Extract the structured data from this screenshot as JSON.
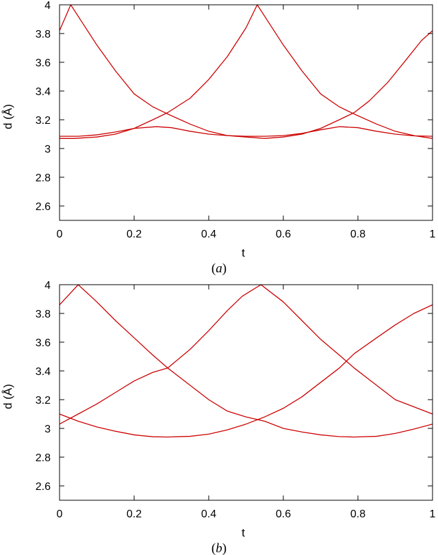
{
  "panels": [
    {
      "caption_letter": "a"
    },
    {
      "caption_letter": "b"
    }
  ],
  "chart_data": [
    {
      "type": "line",
      "xlabel": "t",
      "ylabel": "d (Å)",
      "xlim": [
        0,
        1
      ],
      "ylim": [
        2.5,
        4.0
      ],
      "xticks": [
        0,
        0.2,
        0.4,
        0.6,
        0.8,
        1
      ],
      "xtick_labels": [
        "0",
        "0.2",
        "0.4",
        "0.6",
        "0.8",
        "1"
      ],
      "yticks": [
        2.6,
        2.8,
        3.0,
        3.2,
        3.4,
        3.6,
        3.8,
        4.0
      ],
      "ytick_labels": [
        "2.6",
        "2.8",
        "3",
        "3.2",
        "3.4",
        "3.6",
        "3.8",
        "4"
      ],
      "grid": false,
      "line_color": "#cc0000",
      "series": [
        {
          "x": [
            0,
            0.03,
            0.06,
            0.1,
            0.15,
            0.2,
            0.25,
            0.29,
            0.35,
            0.4,
            0.45,
            0.5,
            0.55,
            0.6,
            0.65,
            0.7,
            0.75,
            0.79,
            0.83,
            0.88,
            0.93,
            0.97,
            1
          ],
          "y": [
            3.82,
            4.0,
            3.88,
            3.72,
            3.54,
            3.38,
            3.29,
            3.24,
            3.17,
            3.12,
            3.09,
            3.08,
            3.07,
            3.08,
            3.1,
            3.14,
            3.2,
            3.25,
            3.33,
            3.46,
            3.62,
            3.75,
            3.82
          ]
        },
        {
          "x": [
            0,
            0.04,
            0.1,
            0.15,
            0.2,
            0.25,
            0.29,
            0.35,
            0.4,
            0.45,
            0.5,
            0.53,
            0.56,
            0.6,
            0.65,
            0.7,
            0.75,
            0.79,
            0.85,
            0.9,
            0.95,
            1
          ],
          "y": [
            3.07,
            3.07,
            3.08,
            3.1,
            3.14,
            3.2,
            3.25,
            3.35,
            3.48,
            3.64,
            3.84,
            4.0,
            3.88,
            3.72,
            3.54,
            3.38,
            3.29,
            3.24,
            3.17,
            3.12,
            3.09,
            3.07
          ]
        },
        {
          "x": [
            0,
            0.05,
            0.1,
            0.15,
            0.2,
            0.26,
            0.3,
            0.35,
            0.4,
            0.45,
            0.5,
            0.55,
            0.6,
            0.65,
            0.7,
            0.75,
            0.8,
            0.85,
            0.9,
            0.95,
            1
          ],
          "y": [
            3.085,
            3.085,
            3.095,
            3.115,
            3.14,
            3.152,
            3.145,
            3.12,
            3.1,
            3.09,
            3.085,
            3.085,
            3.09,
            3.105,
            3.13,
            3.152,
            3.145,
            3.12,
            3.1,
            3.088,
            3.085
          ]
        }
      ]
    },
    {
      "type": "line",
      "xlabel": "t",
      "ylabel": "d (Å)",
      "xlim": [
        0,
        1
      ],
      "ylim": [
        2.5,
        4.0
      ],
      "xticks": [
        0,
        0.2,
        0.4,
        0.6,
        0.8,
        1
      ],
      "xtick_labels": [
        "0",
        "0.2",
        "0.4",
        "0.6",
        "0.8",
        "1"
      ],
      "yticks": [
        2.6,
        2.8,
        3.0,
        3.2,
        3.4,
        3.6,
        3.8,
        4.0
      ],
      "ytick_labels": [
        "2.6",
        "2.8",
        "3",
        "3.2",
        "3.4",
        "3.6",
        "3.8",
        "4"
      ],
      "grid": false,
      "line_color": "#cc0000",
      "series": [
        {
          "x": [
            0,
            0.05,
            0.1,
            0.15,
            0.2,
            0.25,
            0.29,
            0.35,
            0.4,
            0.45,
            0.5,
            0.55,
            0.6,
            0.65,
            0.7,
            0.75,
            0.79,
            0.85,
            0.9,
            0.95,
            1
          ],
          "y": [
            3.1,
            3.05,
            3.01,
            2.98,
            2.955,
            2.942,
            2.94,
            2.945,
            2.96,
            2.99,
            3.03,
            3.08,
            3.14,
            3.22,
            3.32,
            3.42,
            3.52,
            3.63,
            3.72,
            3.8,
            3.86
          ]
        },
        {
          "x": [
            0,
            0.05,
            0.1,
            0.15,
            0.2,
            0.25,
            0.29,
            0.35,
            0.4,
            0.45,
            0.49,
            0.54,
            0.6,
            0.65,
            0.7,
            0.75,
            0.79,
            0.85,
            0.9,
            0.95,
            1
          ],
          "y": [
            3.03,
            3.1,
            3.17,
            3.25,
            3.33,
            3.39,
            3.42,
            3.55,
            3.68,
            3.82,
            3.92,
            4.0,
            3.88,
            3.75,
            3.62,
            3.51,
            3.42,
            3.3,
            3.2,
            3.15,
            3.1
          ]
        },
        {
          "x": [
            0,
            0.05,
            0.1,
            0.15,
            0.2,
            0.25,
            0.29,
            0.35,
            0.4,
            0.45,
            0.5,
            0.55,
            0.6,
            0.65,
            0.7,
            0.75,
            0.79,
            0.85,
            0.9,
            0.95,
            1
          ],
          "y": [
            3.86,
            4.0,
            3.88,
            3.75,
            3.63,
            3.51,
            3.42,
            3.3,
            3.2,
            3.12,
            3.08,
            3.05,
            3.0,
            2.975,
            2.955,
            2.943,
            2.94,
            2.945,
            2.965,
            2.995,
            3.03
          ]
        }
      ]
    }
  ]
}
